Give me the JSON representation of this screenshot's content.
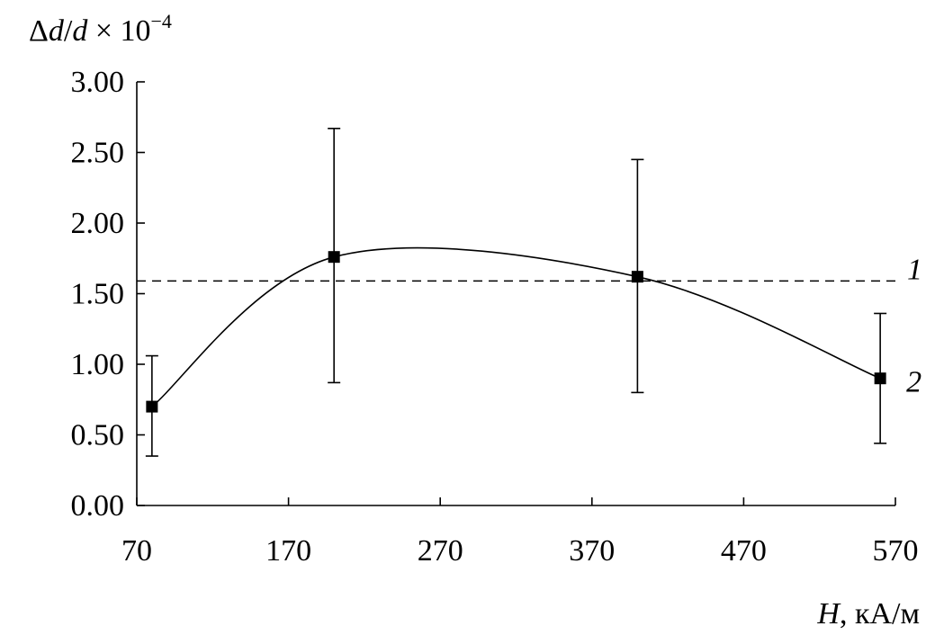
{
  "chart_data": {
    "type": "line",
    "title": "",
    "ylabel": "Δd/d × 10−4",
    "ylabel_parts": {
      "delta": "Δ",
      "num": "d",
      "slash": "/",
      "den": "d",
      "times": " × 10",
      "exp": "−4"
    },
    "xlabel": "H, кА/м",
    "xlabel_parts": {
      "var": "H",
      "unit": ", кА/м"
    },
    "xlim": [
      70,
      570
    ],
    "ylim": [
      0,
      3
    ],
    "x_ticks": [
      70,
      170,
      270,
      370,
      470,
      570
    ],
    "x_tick_labels": [
      "70",
      "170",
      "270",
      "370",
      "470",
      "570"
    ],
    "y_ticks": [
      0,
      0.5,
      1,
      1.5,
      2,
      2.5,
      3
    ],
    "y_tick_labels": [
      "0.00",
      "0.50",
      "1.00",
      "1.50",
      "2.00",
      "2.50",
      "3.00"
    ],
    "grid": false,
    "series": [
      {
        "name": "1",
        "style": "dashed",
        "x": [
          70,
          570
        ],
        "y": [
          1.59,
          1.59
        ]
      },
      {
        "name": "2",
        "style": "smooth-line-with-markers",
        "marker": "square",
        "x": [
          80,
          200,
          400,
          560
        ],
        "y": [
          0.7,
          1.76,
          1.62,
          0.9
        ],
        "y_err_low": [
          0.35,
          0.87,
          0.8,
          0.44
        ],
        "y_err_high": [
          1.06,
          2.67,
          2.45,
          1.36
        ]
      }
    ]
  }
}
